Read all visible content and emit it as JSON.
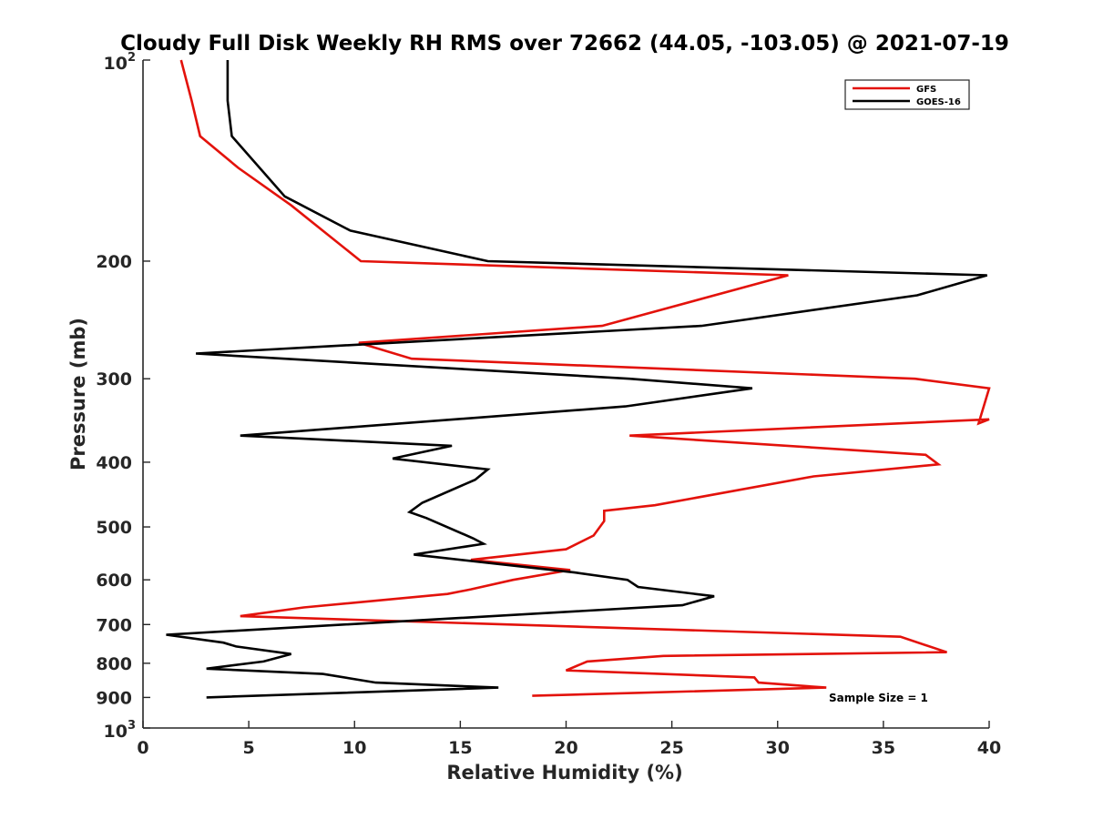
{
  "chart_data": {
    "type": "line",
    "title": "Cloudy Full Disk Weekly RH RMS over 72662 (44.05, -103.05) @ 2021-07-19",
    "xlabel": "Relative Humidity (%)",
    "ylabel": "Pressure (mb)",
    "xlim": [
      0,
      40
    ],
    "ylim": [
      100,
      1000
    ],
    "yscale": "log",
    "yreversed": true,
    "xticks": [
      "0",
      "5",
      "10",
      "15",
      "20",
      "25",
      "30",
      "35",
      "40"
    ],
    "xtick_values": [
      0,
      5,
      10,
      15,
      20,
      25,
      30,
      35,
      40
    ],
    "yticks": [
      {
        "value": 100,
        "base": "10",
        "exp": "2"
      },
      {
        "value": 200,
        "label": "200"
      },
      {
        "value": 300,
        "label": "300"
      },
      {
        "value": 400,
        "label": "400"
      },
      {
        "value": 500,
        "label": "500"
      },
      {
        "value": 600,
        "label": "600"
      },
      {
        "value": 700,
        "label": "700"
      },
      {
        "value": 800,
        "label": "800"
      },
      {
        "value": 900,
        "label": "900"
      },
      {
        "value": 1000,
        "base": "10",
        "exp": "3"
      }
    ],
    "legend_position": "top-right",
    "annotation": "Sample Size = 1",
    "series": [
      {
        "name": "GFS",
        "color": "#e3120b",
        "points": [
          [
            1.8,
            100
          ],
          [
            2.3,
            115
          ],
          [
            2.7,
            130
          ],
          [
            4.5,
            145
          ],
          [
            7.0,
            165
          ],
          [
            10.3,
            200
          ],
          [
            30.5,
            210
          ],
          [
            21.7,
            250
          ],
          [
            10.2,
            265
          ],
          [
            12.7,
            280
          ],
          [
            36.5,
            300
          ],
          [
            40,
            310
          ],
          [
            39.5,
            350
          ],
          [
            40,
            345
          ],
          [
            23.0,
            365
          ],
          [
            37.0,
            390
          ],
          [
            37.6,
            403
          ],
          [
            31.7,
            420
          ],
          [
            24.2,
            464
          ],
          [
            21.8,
            473
          ],
          [
            21.8,
            490
          ],
          [
            21.3,
            515
          ],
          [
            20.0,
            540
          ],
          [
            15.5,
            560
          ],
          [
            20.2,
            580
          ],
          [
            17.5,
            600
          ],
          [
            15.5,
            620
          ],
          [
            14.4,
            630
          ],
          [
            7.6,
            660
          ],
          [
            4.6,
            680
          ],
          [
            35.8,
            730
          ],
          [
            38.0,
            770
          ],
          [
            24.6,
            780
          ],
          [
            21.0,
            795
          ],
          [
            20.0,
            820
          ],
          [
            28.9,
            840
          ],
          [
            29.1,
            855
          ],
          [
            32.3,
            870
          ],
          [
            18.4,
            895
          ]
        ]
      },
      {
        "name": "GOES-16",
        "color": "#000000",
        "points": [
          [
            4.0,
            100
          ],
          [
            4.0,
            115
          ],
          [
            4.2,
            130
          ],
          [
            6.7,
            160
          ],
          [
            9.8,
            180
          ],
          [
            16.3,
            200
          ],
          [
            39.9,
            210
          ],
          [
            36.6,
            225
          ],
          [
            26.4,
            250
          ],
          [
            2.5,
            275
          ],
          [
            23.0,
            300
          ],
          [
            28.8,
            310
          ],
          [
            22.8,
            330
          ],
          [
            4.6,
            365
          ],
          [
            14.6,
            378
          ],
          [
            11.8,
            395
          ],
          [
            16.3,
            410
          ],
          [
            15.7,
            425
          ],
          [
            13.2,
            460
          ],
          [
            12.6,
            475
          ],
          [
            13.4,
            485
          ],
          [
            15.6,
            520
          ],
          [
            16.1,
            530
          ],
          [
            12.8,
            550
          ],
          [
            20.4,
            585
          ],
          [
            22.9,
            600
          ],
          [
            23.4,
            615
          ],
          [
            27.0,
            635
          ],
          [
            25.5,
            655
          ],
          [
            1.1,
            725
          ],
          [
            3.8,
            745
          ],
          [
            4.4,
            755
          ],
          [
            7.0,
            775
          ],
          [
            5.7,
            795
          ],
          [
            3.0,
            815
          ],
          [
            8.5,
            830
          ],
          [
            11.0,
            855
          ],
          [
            16.8,
            870
          ],
          [
            3.0,
            900
          ]
        ]
      }
    ]
  }
}
